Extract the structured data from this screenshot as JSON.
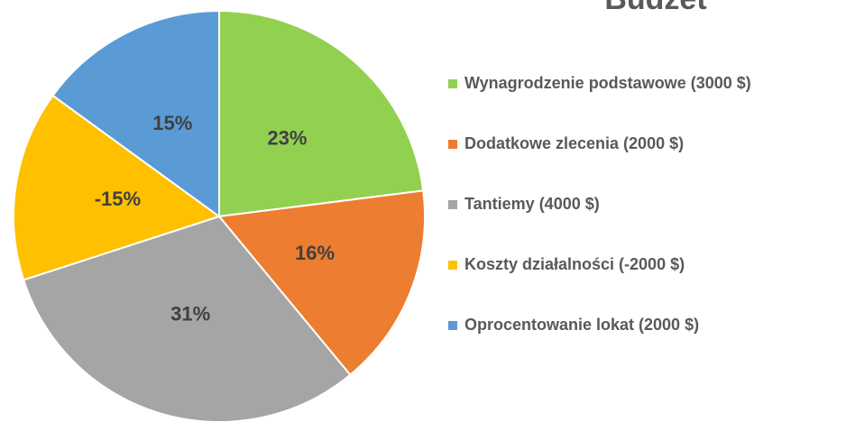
{
  "chart_data": {
    "type": "pie",
    "title": "Budżet",
    "categories": [
      "Wynagrodzenie podstawowe (3000 $)",
      "Dodatkowe zlecenia (2000 $)",
      "Tantiemy (4000 $)",
      "Koszty działalności (-2000 $)",
      "Oprocentowanie lokat (2000 $)"
    ],
    "values": [
      23,
      16,
      31,
      -15,
      15
    ],
    "colors": [
      "#92d050",
      "#ed7d31",
      "#a5a5a5",
      "#ffc000",
      "#5b9bd5"
    ],
    "legend": "right"
  }
}
